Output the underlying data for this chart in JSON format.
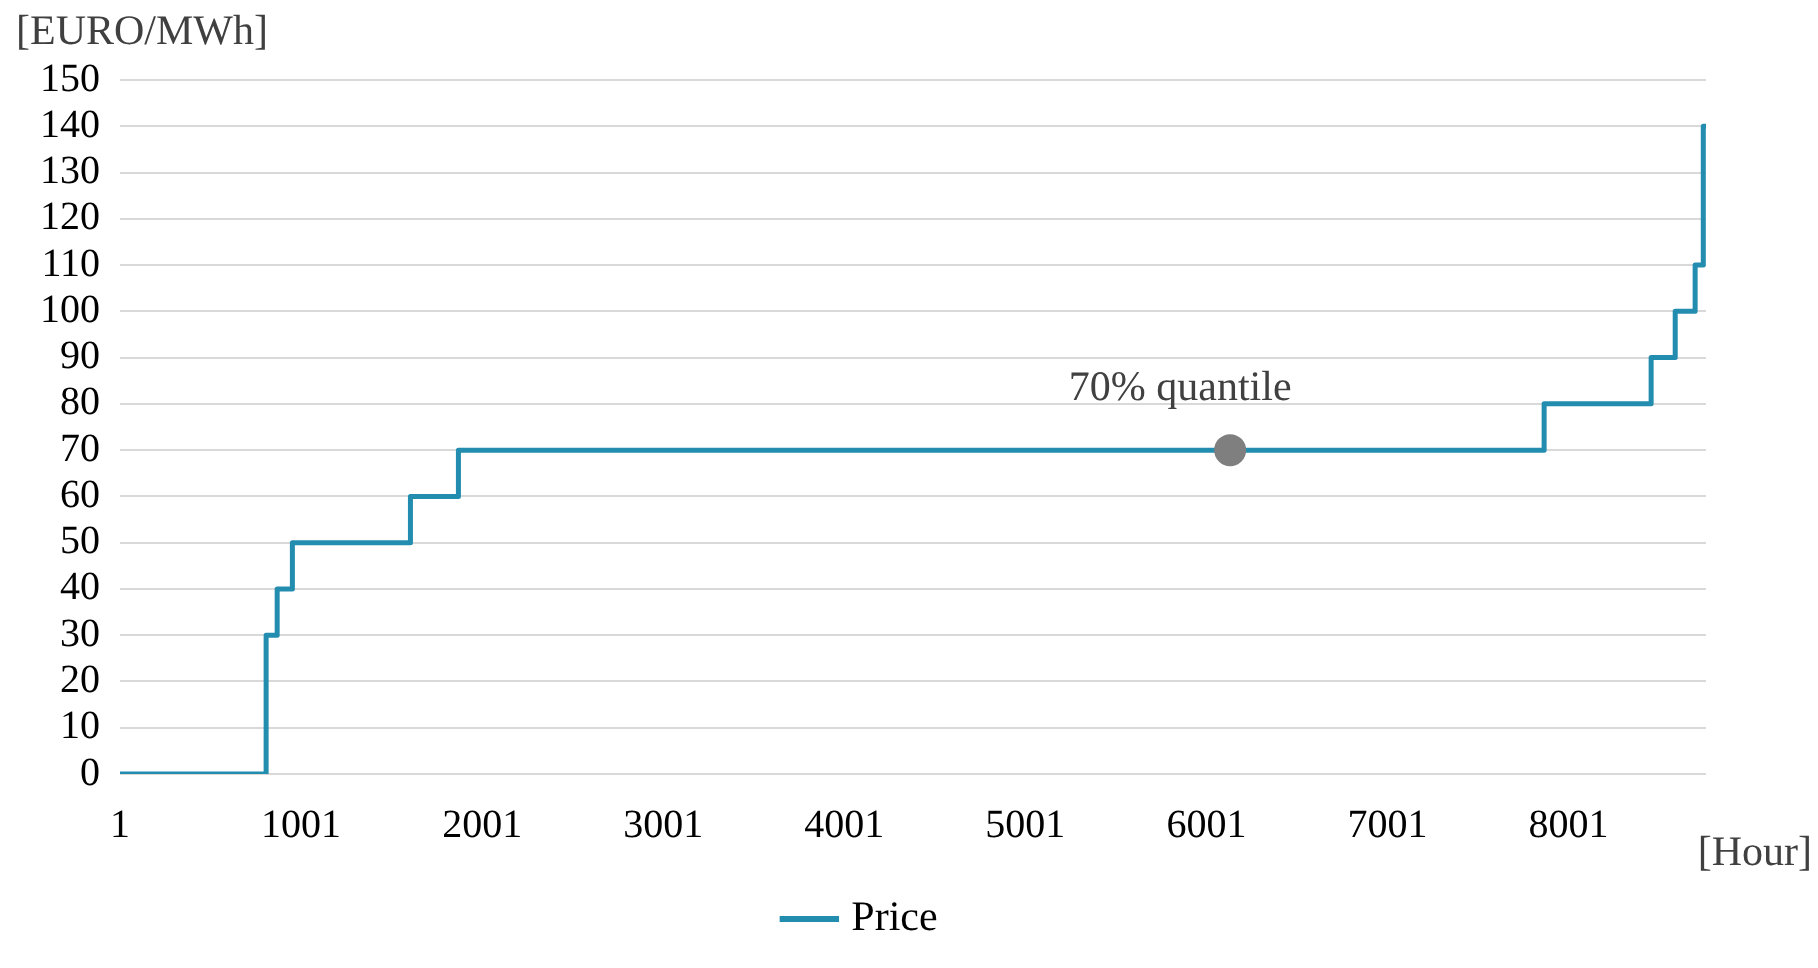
{
  "chart_data": {
    "type": "step",
    "xlabel": "[Hour]",
    "ylabel": "[EURO/MWh]",
    "xlim": [
      1,
      8760
    ],
    "xticks": [
      1,
      1001,
      2001,
      3001,
      4001,
      5001,
      6001,
      7001,
      8001
    ],
    "ylim": [
      0,
      150
    ],
    "yticks": [
      0,
      10,
      20,
      30,
      40,
      50,
      60,
      70,
      80,
      90,
      100,
      110,
      120,
      130,
      140,
      150
    ],
    "grid": "y",
    "legend": "bottom",
    "marker": "none",
    "line_style": "solid",
    "series": [
      {
        "name": "Price",
        "color": "#238db0",
        "x": [
          1,
          808,
          869,
          953,
          1605,
          1870,
          7866,
          8457,
          8590,
          8700,
          8745,
          8760
        ],
        "values": [
          0,
          30,
          40,
          50,
          60,
          70,
          80,
          90,
          100,
          110,
          140,
          140
        ]
      },
      {
        "type": "scatter",
        "color": "#7f7f7f",
        "marker": "circle",
        "x": [
          6132
        ],
        "values": [
          70
        ]
      }
    ],
    "annotations": [
      {
        "text": "70% quantile",
        "x": 6132,
        "y": 70
      }
    ]
  }
}
